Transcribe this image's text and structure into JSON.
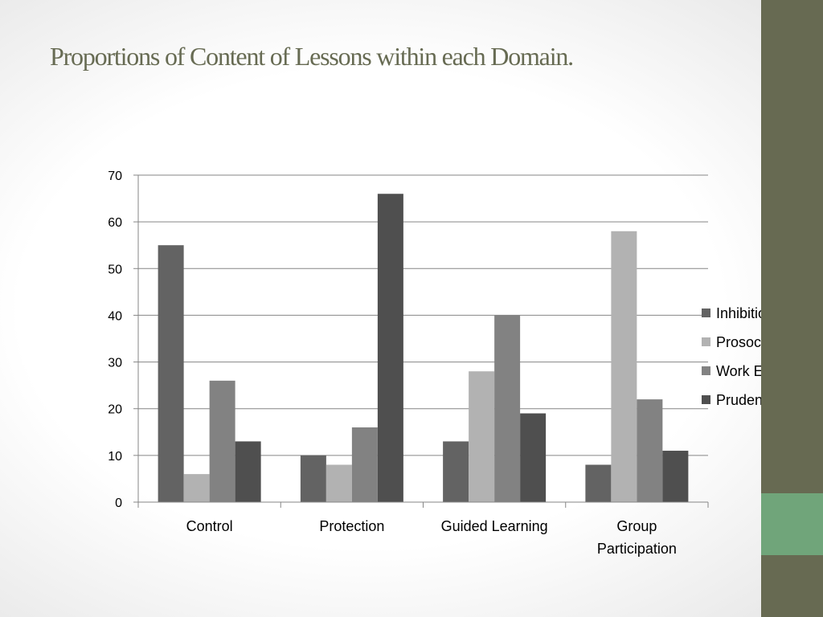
{
  "slide": {
    "title": "Proportions of Content of Lessons within each Domain."
  },
  "theme": {
    "title_color": "#676b53",
    "side_bar_color": "#676a52",
    "side_accent_color": "#70a57a",
    "grid_color": "#868686"
  },
  "chart_data": {
    "type": "bar",
    "title": "",
    "xlabel": "",
    "ylabel": "",
    "ylim": [
      0,
      70
    ],
    "yticks": [
      0,
      10,
      20,
      30,
      40,
      50,
      60,
      70
    ],
    "grid": true,
    "legend_position": "right",
    "categories": [
      "Control",
      "Protection",
      "Guided Learning",
      "Group Participation"
    ],
    "category_label_lines": [
      [
        "Control"
      ],
      [
        "Protection"
      ],
      [
        "Guided Learning"
      ],
      [
        "Group",
        "Participation"
      ]
    ],
    "series": [
      {
        "name": "Inhibition",
        "color": "#636363",
        "values": [
          55,
          10,
          13,
          8
        ]
      },
      {
        "name": "Prosocial",
        "color": "#b2b2b2",
        "values": [
          6,
          8,
          28,
          58
        ]
      },
      {
        "name": "Work Ethic",
        "color": "#828282",
        "values": [
          26,
          16,
          40,
          22
        ]
      },
      {
        "name": "Prudential",
        "color": "#4f4f4f",
        "values": [
          13,
          66,
          19,
          11
        ]
      }
    ]
  }
}
